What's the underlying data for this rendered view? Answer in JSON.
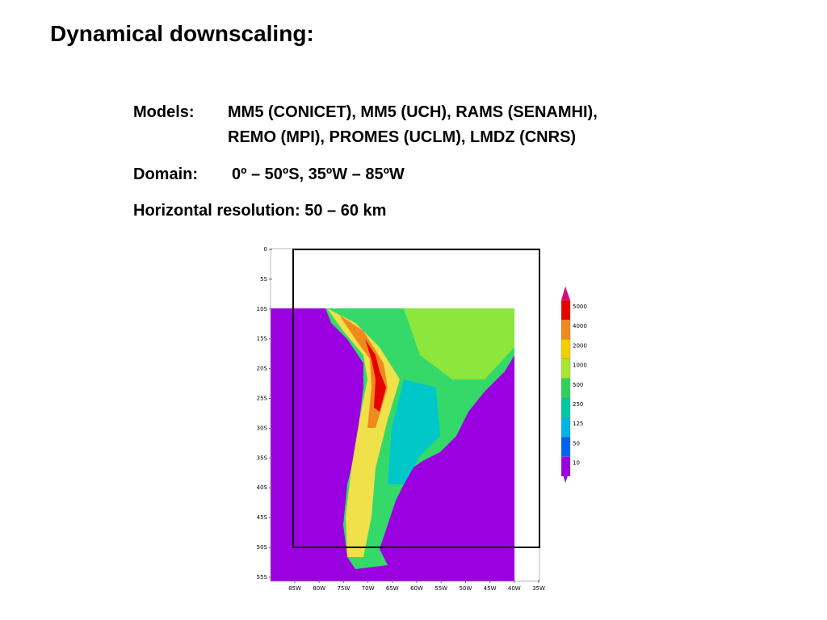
{
  "title": "Dynamical downscaling:",
  "models": {
    "label": "Models:",
    "lines": [
      "MM5 (CONICET), MM5 (UCH), RAMS (SENAMHI),",
      "REMO (MPI), PROMES (UCLM), LMDZ (CNRS)"
    ]
  },
  "domain": {
    "label": "Domain:",
    "value": "0º – 50ºS, 35ºW – 85ºW"
  },
  "resolution": "Horizontal resolution: 50 – 60 km",
  "map": {
    "lat_labels": [
      "0",
      "5S",
      "10S",
      "15S",
      "20S",
      "25S",
      "30S",
      "35S",
      "40S",
      "45S",
      "50S",
      "55S"
    ],
    "lon_labels": [
      "85W",
      "80W",
      "75W",
      "70W",
      "65W",
      "60W",
      "55W",
      "50W",
      "45W",
      "40W",
      "35W"
    ],
    "colorbar_labels": [
      "5000",
      "4000",
      "2000",
      "1000",
      "500",
      "250",
      "125",
      "50",
      "10"
    ]
  }
}
